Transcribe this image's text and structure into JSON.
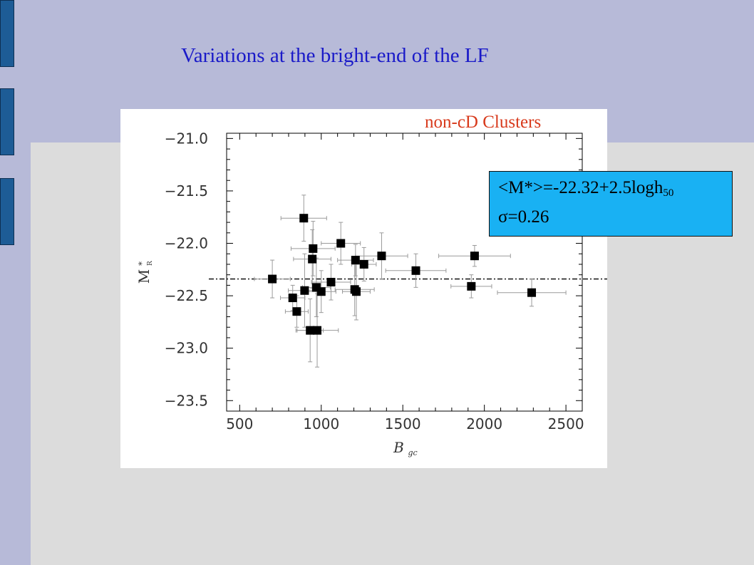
{
  "slide": {
    "title": "Variations at the bright-end of the LF",
    "annotation": "non-cD  Clusters",
    "formula": {
      "main": "<M*>=-22.32+2.5logh",
      "subscript": "50",
      "sigma_symbol": "σ",
      "sigma_value": "=0.26"
    },
    "colors": {
      "background": "#b7bad8",
      "panel": "#dcdcdc",
      "tab": "#1d5c96",
      "title": "#1a1ac8",
      "annotation": "#d83a1c",
      "formula_box": "#19b1f3"
    }
  },
  "chart_data": {
    "type": "scatter",
    "xlabel": "B",
    "xlabel_sub": "gc",
    "ylabel": "M",
    "ylabel_sup": "*",
    "ylabel_sub": "R",
    "xlim": [
      420,
      2600
    ],
    "ylim": [
      -20.95,
      -23.6
    ],
    "xticks": [
      500,
      1000,
      1500,
      2000,
      2500
    ],
    "yticks": [
      -21.0,
      -21.5,
      -22.0,
      -22.5,
      -23.0,
      -23.5
    ],
    "ytick_labels": [
      "−21.0",
      "−21.5",
      "−22.0",
      "−22.5",
      "−23.0",
      "−23.5"
    ],
    "mean_line": -22.34,
    "points": [
      {
        "x": 700,
        "y": -22.34,
        "xerr": 110,
        "yerr": 0.18
      },
      {
        "x": 825,
        "y": -22.52,
        "xerr": 75,
        "yerr": 0.12
      },
      {
        "x": 850,
        "y": -22.65,
        "xerr": 70,
        "yerr": 0.15
      },
      {
        "x": 893,
        "y": -21.76,
        "xerr": 140,
        "yerr": 0.22
      },
      {
        "x": 898,
        "y": -22.45,
        "xerr": 100,
        "yerr": 0.35
      },
      {
        "x": 932,
        "y": -22.83,
        "xerr": 80,
        "yerr": 0.3
      },
      {
        "x": 945,
        "y": -22.15,
        "xerr": 115,
        "yerr": 0.28
      },
      {
        "x": 950,
        "y": -22.05,
        "xerr": 135,
        "yerr": 0.26
      },
      {
        "x": 970,
        "y": -22.42,
        "xerr": 85,
        "yerr": 0.28
      },
      {
        "x": 975,
        "y": -22.83,
        "xerr": 130,
        "yerr": 0.35
      },
      {
        "x": 1000,
        "y": -22.46,
        "xerr": 90,
        "yerr": 0.2
      },
      {
        "x": 1060,
        "y": -22.37,
        "xerr": 120,
        "yerr": 0.17
      },
      {
        "x": 1120,
        "y": -22.0,
        "xerr": 120,
        "yerr": 0.2
      },
      {
        "x": 1205,
        "y": -22.44,
        "xerr": 120,
        "yerr": 0.25
      },
      {
        "x": 1210,
        "y": -22.16,
        "xerr": 110,
        "yerr": 0.15
      },
      {
        "x": 1215,
        "y": -22.46,
        "xerr": 85,
        "yerr": 0.27
      },
      {
        "x": 1262,
        "y": -22.2,
        "xerr": 75,
        "yerr": 0.16
      },
      {
        "x": 1370,
        "y": -22.12,
        "xerr": 160,
        "yerr": 0.22
      },
      {
        "x": 1580,
        "y": -22.26,
        "xerr": 185,
        "yerr": 0.16
      },
      {
        "x": 1920,
        "y": -22.41,
        "xerr": 125,
        "yerr": 0.11
      },
      {
        "x": 1940,
        "y": -22.12,
        "xerr": 220,
        "yerr": 0.1
      },
      {
        "x": 2290,
        "y": -22.47,
        "xerr": 210,
        "yerr": 0.13
      }
    ]
  }
}
